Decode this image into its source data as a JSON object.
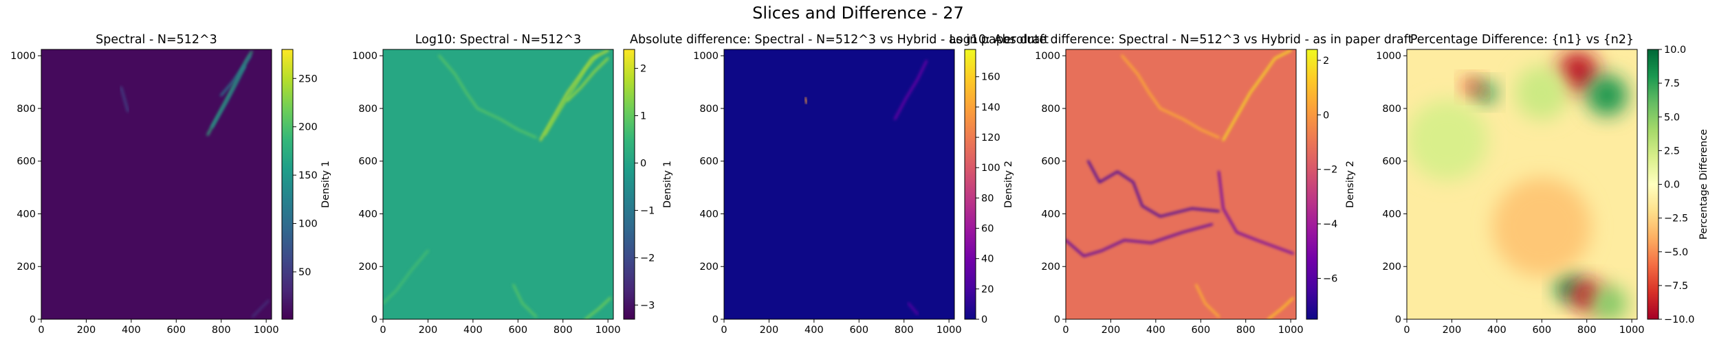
{
  "figure": {
    "suptitle": "Slices and Difference - 27"
  },
  "chart_data": [
    {
      "type": "heatmap",
      "title": "Spectral - N=512^3",
      "colormap": "viridis",
      "xlim": [
        0,
        1024
      ],
      "ylim": [
        0,
        1024
      ],
      "xticks": [
        0,
        200,
        400,
        600,
        800,
        1000
      ],
      "yticks": [
        0,
        200,
        400,
        600,
        800,
        1000
      ],
      "colorbar": {
        "label": "Density 1",
        "range": [
          1,
          280
        ],
        "ticks": [
          50,
          100,
          150,
          200,
          250
        ]
      },
      "background_value": 8,
      "features": [
        {
          "kind": "filament",
          "x": [
            740,
            790,
            840,
            880,
            910,
            935
          ],
          "y": [
            700,
            780,
            860,
            930,
            980,
            1015
          ],
          "value": 180
        },
        {
          "kind": "filament",
          "x": [
            760,
            820,
            870,
            905
          ],
          "y": [
            730,
            820,
            900,
            960
          ],
          "value": 140
        },
        {
          "kind": "filament",
          "x": [
            800,
            850,
            900,
            930
          ],
          "y": [
            850,
            900,
            960,
            1000
          ],
          "value": 120
        },
        {
          "kind": "filament",
          "x": [
            355,
            365,
            375,
            385
          ],
          "y": [
            880,
            850,
            820,
            790
          ],
          "value": 60
        },
        {
          "kind": "filament",
          "x": [
            940,
            975,
            1010
          ],
          "y": [
            10,
            40,
            70
          ],
          "value": 40
        }
      ]
    },
    {
      "type": "heatmap",
      "title": "Log10: Spectral - N=512^3",
      "colormap": "viridis",
      "xlim": [
        0,
        1024
      ],
      "ylim": [
        0,
        1024
      ],
      "xticks": [
        0,
        200,
        400,
        600,
        800,
        1000
      ],
      "yticks": [
        0,
        200,
        400,
        600,
        800,
        1000
      ],
      "colorbar": {
        "label": "Density 1",
        "range": [
          -3.3,
          2.4
        ],
        "ticks": [
          -3,
          -2,
          -1,
          0,
          1,
          2
        ]
      },
      "background_value": 0.1,
      "features": [
        {
          "kind": "filament",
          "x": [
            700,
            760,
            820,
            880,
            930,
            1000
          ],
          "y": [
            680,
            770,
            860,
            930,
            990,
            1020
          ],
          "value": 1.9
        },
        {
          "kind": "filament",
          "x": [
            720,
            790,
            850,
            900,
            950
          ],
          "y": [
            700,
            800,
            880,
            950,
            1000
          ],
          "value": 1.5
        },
        {
          "kind": "filament",
          "x": [
            820,
            880,
            940,
            1000
          ],
          "y": [
            830,
            880,
            940,
            990
          ],
          "value": 1.6
        },
        {
          "kind": "filament",
          "x": [
            250,
            320,
            370,
            420,
            520,
            600,
            680
          ],
          "y": [
            1000,
            930,
            860,
            800,
            760,
            720,
            690
          ],
          "value": 0.9
        },
        {
          "kind": "filament",
          "x": [
            900,
            960,
            1010
          ],
          "y": [
            0,
            40,
            80
          ],
          "value": 1.2
        },
        {
          "kind": "filament",
          "x": [
            0,
            60,
            130,
            200
          ],
          "y": [
            60,
            110,
            190,
            260
          ],
          "value": 0.7
        },
        {
          "kind": "filament",
          "x": [
            580,
            620,
            680
          ],
          "y": [
            130,
            60,
            10
          ],
          "value": 0.9
        }
      ]
    },
    {
      "type": "heatmap",
      "title": "Absolute difference: Spectral - N=512^3 vs Hybrid - as in paper draft",
      "colormap": "plasma",
      "xlim": [
        0,
        1024
      ],
      "ylim": [
        0,
        1024
      ],
      "xticks": [
        0,
        200,
        400,
        600,
        800,
        1000
      ],
      "yticks": [
        0,
        200,
        400,
        600,
        800,
        1000
      ],
      "colorbar": {
        "label": "Density 2",
        "range": [
          0,
          178
        ],
        "ticks": [
          0,
          20,
          40,
          60,
          80,
          100,
          120,
          140,
          160
        ]
      },
      "background_value": 0,
      "features": [
        {
          "kind": "filament",
          "x": [
            760,
            810,
            860,
            900
          ],
          "y": [
            760,
            840,
            910,
            980
          ],
          "value": 40
        },
        {
          "kind": "filament",
          "x": [
            360,
            368
          ],
          "y": [
            840,
            820
          ],
          "value": 140
        },
        {
          "kind": "filament",
          "x": [
            820,
            860
          ],
          "y": [
            60,
            20
          ],
          "value": 30
        }
      ]
    },
    {
      "type": "heatmap",
      "title": "Log10: Absolute difference: Spectral - N=512^3 vs Hybrid - as in paper draft",
      "colormap": "plasma",
      "xlim": [
        0,
        1024
      ],
      "ylim": [
        0,
        1024
      ],
      "xticks": [
        0,
        200,
        400,
        600,
        800,
        1000
      ],
      "yticks": [
        0,
        200,
        400,
        600,
        800,
        1000
      ],
      "colorbar": {
        "label": "Density 2",
        "range": [
          -7.5,
          2.4
        ],
        "ticks": [
          -6,
          -4,
          -2,
          0,
          2
        ]
      },
      "background_value": -1.2,
      "features": [
        {
          "kind": "filament",
          "x": [
            700,
            760,
            820,
            880,
            930,
            1000
          ],
          "y": [
            680,
            770,
            860,
            930,
            990,
            1020
          ],
          "value": 1.8
        },
        {
          "kind": "filament",
          "x": [
            250,
            320,
            370,
            420,
            520,
            600,
            680
          ],
          "y": [
            1000,
            930,
            860,
            800,
            760,
            720,
            690
          ],
          "value": 0.6
        },
        {
          "kind": "filament",
          "x": [
            900,
            960,
            1010
          ],
          "y": [
            0,
            40,
            80
          ],
          "value": 1.2
        },
        {
          "kind": "filament",
          "x": [
            580,
            620,
            680
          ],
          "y": [
            130,
            60,
            10
          ],
          "value": 0.7
        },
        {
          "kind": "filament",
          "x": [
            100,
            150,
            230,
            300,
            340,
            420,
            560,
            680
          ],
          "y": [
            600,
            520,
            560,
            520,
            430,
            390,
            420,
            410
          ],
          "value": -6.5
        },
        {
          "kind": "filament",
          "x": [
            0,
            80,
            160,
            260,
            380,
            520,
            650
          ],
          "y": [
            300,
            240,
            260,
            300,
            290,
            330,
            360
          ],
          "value": -6.0
        },
        {
          "kind": "filament",
          "x": [
            680,
            700,
            760,
            850,
            1010
          ],
          "y": [
            560,
            420,
            330,
            300,
            250
          ],
          "value": -5.5
        }
      ]
    },
    {
      "type": "heatmap",
      "title": "Percentage Difference: {n1} vs {n2}",
      "colormap": "RdYlGn",
      "xlim": [
        0,
        1024
      ],
      "ylim": [
        0,
        1024
      ],
      "xticks": [
        0,
        200,
        400,
        600,
        800,
        1000
      ],
      "yticks": [
        0,
        200,
        400,
        600,
        800,
        1000
      ],
      "colorbar": {
        "label": "Percentage Difference",
        "range": [
          -10,
          10
        ],
        "ticks": [
          -10.0,
          -7.5,
          -5.0,
          -2.5,
          0.0,
          2.5,
          5.0,
          7.5,
          10.0
        ]
      },
      "background_value": -1.2,
      "features": [
        {
          "kind": "blob",
          "x": 350,
          "y": 860,
          "r": 45,
          "value": 9
        },
        {
          "kind": "blob",
          "x": 290,
          "y": 880,
          "r": 40,
          "value": -8
        },
        {
          "kind": "blob",
          "x": 760,
          "y": 940,
          "r": 90,
          "value": -9
        },
        {
          "kind": "blob",
          "x": 890,
          "y": 850,
          "r": 90,
          "value": 8
        },
        {
          "kind": "blob",
          "x": 720,
          "y": 120,
          "r": 60,
          "value": 9
        },
        {
          "kind": "blob",
          "x": 800,
          "y": 90,
          "r": 70,
          "value": -9
        },
        {
          "kind": "blob",
          "x": 900,
          "y": 60,
          "r": 80,
          "value": 5
        },
        {
          "kind": "blob",
          "x": 180,
          "y": 680,
          "r": 180,
          "value": 2
        },
        {
          "kind": "blob",
          "x": 600,
          "y": 860,
          "r": 120,
          "value": 2.5
        },
        {
          "kind": "blob",
          "x": 600,
          "y": 350,
          "r": 220,
          "value": -3
        }
      ]
    }
  ]
}
